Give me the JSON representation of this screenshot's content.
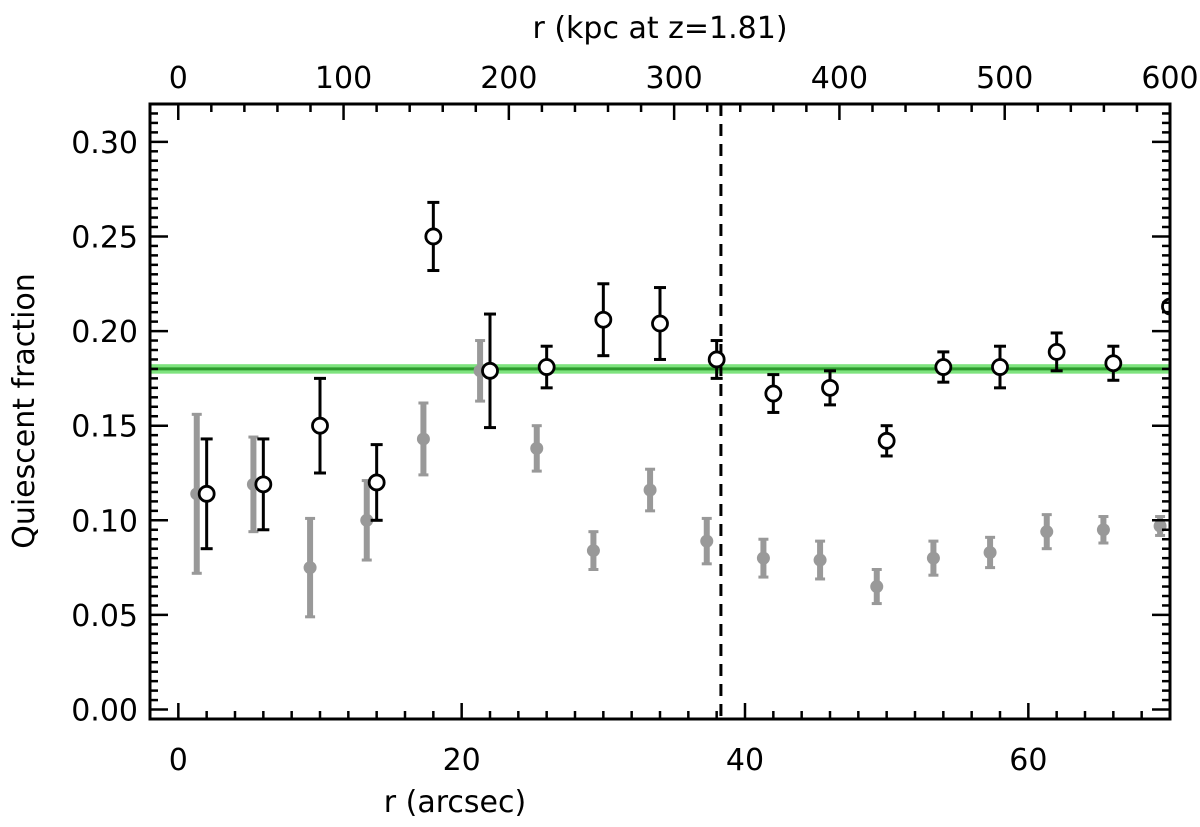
{
  "chart_data": {
    "type": "scatter",
    "xlabel": "r (arcsec)",
    "x2label": "r (kpc at z=1.81)",
    "ylabel": "Quiescent fraction",
    "xlim": [
      -2,
      70
    ],
    "ylim": [
      -0.005,
      0.32
    ],
    "x2lim": [
      -17.1,
      600
    ],
    "x_ticks": [
      "0",
      "20",
      "40",
      "60"
    ],
    "x_tick_values": [
      0,
      20,
      40,
      60
    ],
    "x2_ticks": [
      "0",
      "100",
      "200",
      "300",
      "400",
      "500",
      "600"
    ],
    "x2_tick_values": [
      0,
      100,
      200,
      300,
      400,
      500,
      600
    ],
    "y_ticks": [
      "0.00",
      "0.05",
      "0.10",
      "0.15",
      "0.20",
      "0.25",
      "0.30"
    ],
    "y_tick_values": [
      0.0,
      0.05,
      0.1,
      0.15,
      0.2,
      0.25,
      0.3
    ],
    "reference_line": {
      "y": 0.18,
      "band": [
        0.1775,
        0.1825
      ],
      "line_color": "#2d9a2d",
      "band_color": "#7ee37e"
    },
    "vertical_marker": {
      "x": 38.3,
      "style": "dashed"
    },
    "colors": {
      "primary": "#000000",
      "secondary": "#999999"
    },
    "series": [
      {
        "marker": "open-circle",
        "color": "#000000",
        "points": [
          {
            "x": 2,
            "y": 0.114,
            "err": 0.029
          },
          {
            "x": 6,
            "y": 0.119,
            "err": 0.024
          },
          {
            "x": 10,
            "y": 0.15,
            "err": 0.025
          },
          {
            "x": 14,
            "y": 0.12,
            "err": 0.02
          },
          {
            "x": 18,
            "y": 0.25,
            "err": 0.018
          },
          {
            "x": 22,
            "y": 0.179,
            "err": 0.03
          },
          {
            "x": 26,
            "y": 0.181,
            "err": 0.011
          },
          {
            "x": 30,
            "y": 0.206,
            "err": 0.019
          },
          {
            "x": 34,
            "y": 0.204,
            "err": 0.019
          },
          {
            "x": 38,
            "y": 0.185,
            "err": 0.01
          },
          {
            "x": 42,
            "y": 0.167,
            "err": 0.01
          },
          {
            "x": 46,
            "y": 0.17,
            "err": 0.009
          },
          {
            "x": 50,
            "y": 0.142,
            "err": 0.008
          },
          {
            "x": 54,
            "y": 0.181,
            "err": 0.008
          },
          {
            "x": 58,
            "y": 0.181,
            "err": 0.011
          },
          {
            "x": 62,
            "y": 0.189,
            "err": 0.01
          },
          {
            "x": 66,
            "y": 0.183,
            "err": 0.009
          },
          {
            "x": 70,
            "y": 0.213,
            "err": 0.0
          }
        ]
      },
      {
        "marker": "filled-circle",
        "color": "#999999",
        "points": [
          {
            "x": 1.3,
            "y": 0.114,
            "err": 0.042
          },
          {
            "x": 5.3,
            "y": 0.119,
            "err": 0.025
          },
          {
            "x": 9.3,
            "y": 0.075,
            "err": 0.026
          },
          {
            "x": 13.3,
            "y": 0.1,
            "err": 0.021
          },
          {
            "x": 17.3,
            "y": 0.143,
            "err": 0.019
          },
          {
            "x": 21.3,
            "y": 0.179,
            "err": 0.016
          },
          {
            "x": 25.3,
            "y": 0.138,
            "err": 0.012
          },
          {
            "x": 29.3,
            "y": 0.084,
            "err": 0.01
          },
          {
            "x": 33.3,
            "y": 0.116,
            "err": 0.011
          },
          {
            "x": 37.3,
            "y": 0.089,
            "err": 0.012
          },
          {
            "x": 41.3,
            "y": 0.08,
            "err": 0.01
          },
          {
            "x": 45.3,
            "y": 0.079,
            "err": 0.01
          },
          {
            "x": 49.3,
            "y": 0.065,
            "err": 0.009
          },
          {
            "x": 53.3,
            "y": 0.08,
            "err": 0.009
          },
          {
            "x": 57.3,
            "y": 0.083,
            "err": 0.008
          },
          {
            "x": 61.3,
            "y": 0.094,
            "err": 0.009
          },
          {
            "x": 65.3,
            "y": 0.095,
            "err": 0.007
          },
          {
            "x": 69.3,
            "y": 0.097,
            "err": 0.005
          }
        ]
      }
    ]
  }
}
